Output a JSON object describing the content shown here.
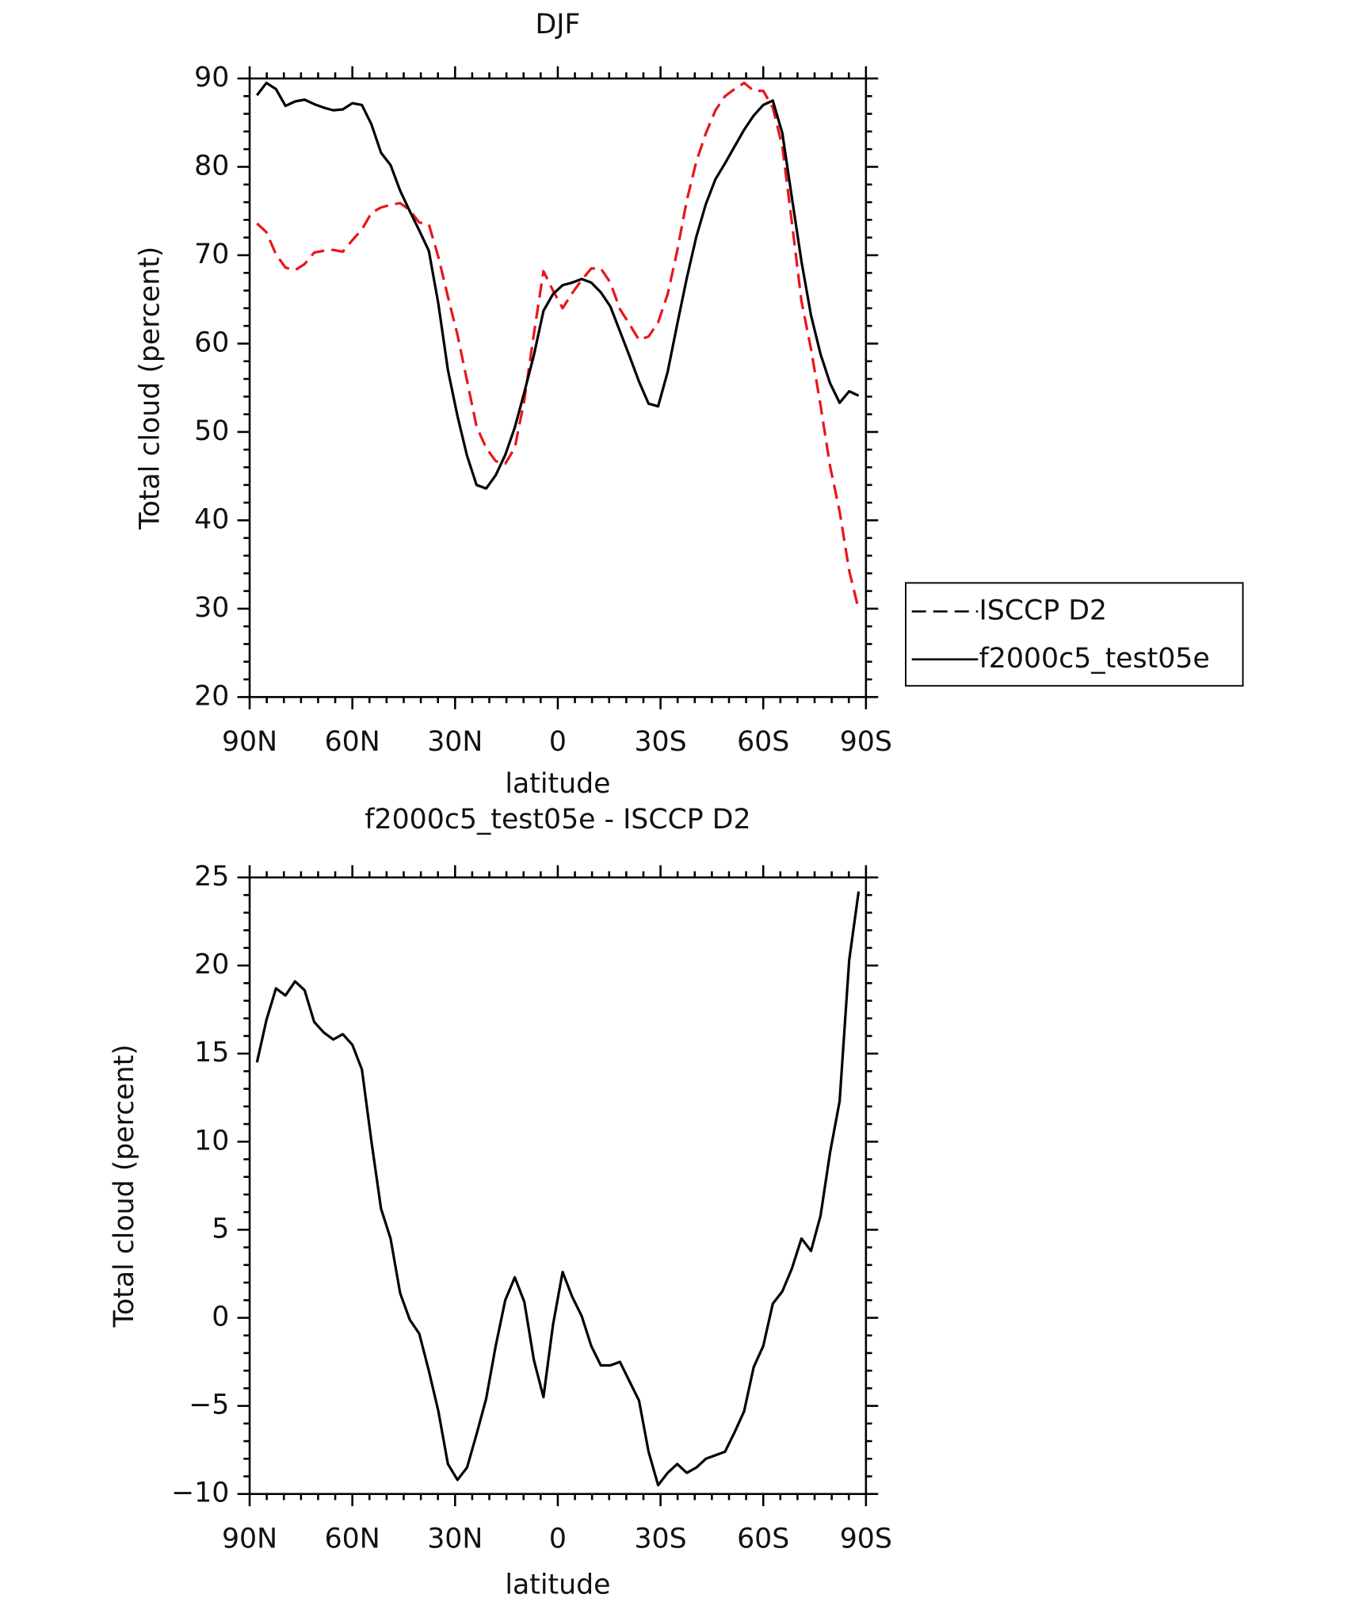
{
  "chart_data": [
    {
      "type": "line",
      "title": "DJF",
      "xlabel": "latitude",
      "ylabel": "Total cloud (percent)",
      "x": [
        87.86,
        85.1,
        82.31,
        79.53,
        76.74,
        73.95,
        71.16,
        68.37,
        65.58,
        62.79,
        60.0,
        57.21,
        54.42,
        51.63,
        48.84,
        46.04,
        43.25,
        40.46,
        37.67,
        34.88,
        32.09,
        29.3,
        26.51,
        23.72,
        20.93,
        18.14,
        15.35,
        12.56,
        9.77,
        6.98,
        4.19,
        1.4,
        -1.4,
        -4.19,
        -6.98,
        -9.77,
        -12.56,
        -15.35,
        -18.14,
        -20.93,
        -23.72,
        -26.51,
        -29.3,
        -32.09,
        -34.88,
        -37.67,
        -40.46,
        -43.25,
        -46.04,
        -48.84,
        -51.63,
        -54.42,
        -57.21,
        -60.0,
        -62.79,
        -65.58,
        -68.37,
        -71.16,
        -73.95,
        -76.74,
        -79.53,
        -82.31,
        -85.1,
        -87.86
      ],
      "xlim": [
        90,
        -90
      ],
      "xticks": [
        {
          "value": 90,
          "label": "90N"
        },
        {
          "value": 60,
          "label": "60N"
        },
        {
          "value": 30,
          "label": "30N"
        },
        0,
        {
          "value": -30,
          "label": "30S"
        },
        {
          "value": -60,
          "label": "60S"
        },
        {
          "value": -90,
          "label": "90S"
        }
      ],
      "ylim": [
        20,
        90
      ],
      "yticks": [
        20,
        30,
        40,
        50,
        60,
        70,
        80,
        90
      ],
      "legend": "right",
      "series": [
        {
          "name": "ISCCP D2",
          "color": "#e8161b",
          "dashed": true,
          "values": [
            73.6,
            72.6,
            70.1,
            68.6,
            68.3,
            69.0,
            70.3,
            70.5,
            70.6,
            70.4,
            71.7,
            72.9,
            74.8,
            75.4,
            75.7,
            75.9,
            75.1,
            73.7,
            73.5,
            69.8,
            65.3,
            61.0,
            55.8,
            50.6,
            48.2,
            46.7,
            46.4,
            48.2,
            53.6,
            61.1,
            68.2,
            66.0,
            64.0,
            65.7,
            67.2,
            68.5,
            68.5,
            66.9,
            63.9,
            62.2,
            60.4,
            60.8,
            62.4,
            65.6,
            70.5,
            76.2,
            80.6,
            83.8,
            86.4,
            88.0,
            88.8,
            89.5,
            88.6,
            88.6,
            86.7,
            82.3,
            73.7,
            64.8,
            59.4,
            53.0,
            46.1,
            41.0,
            34.3,
            29.9
          ]
        },
        {
          "name": "f2000c5_test05e",
          "color": "#000000",
          "dashed": false,
          "values": [
            88.1,
            89.5,
            88.8,
            86.9,
            87.4,
            87.6,
            87.1,
            86.7,
            86.4,
            86.5,
            87.2,
            87.0,
            84.8,
            81.6,
            80.2,
            77.3,
            75.0,
            72.8,
            70.5,
            64.5,
            57.0,
            51.8,
            47.3,
            44.0,
            43.6,
            45.1,
            47.4,
            50.5,
            54.5,
            58.7,
            63.7,
            65.6,
            66.6,
            66.9,
            67.3,
            66.9,
            65.8,
            64.2,
            61.4,
            58.6,
            55.7,
            53.2,
            52.9,
            56.8,
            62.2,
            67.4,
            72.1,
            75.8,
            78.6,
            80.4,
            82.3,
            84.2,
            85.8,
            87.0,
            87.5,
            83.8,
            76.5,
            69.3,
            63.2,
            58.8,
            55.5,
            53.3,
            54.6,
            54.1
          ]
        }
      ]
    },
    {
      "type": "line",
      "title": "f2000c5_test05e - ISCCP D2",
      "xlabel": "latitude",
      "ylabel": "Total cloud (percent)",
      "x": [
        87.86,
        85.1,
        82.31,
        79.53,
        76.74,
        73.95,
        71.16,
        68.37,
        65.58,
        62.79,
        60.0,
        57.21,
        54.42,
        51.63,
        48.84,
        46.04,
        43.25,
        40.46,
        37.67,
        34.88,
        32.09,
        29.3,
        26.51,
        23.72,
        20.93,
        18.14,
        15.35,
        12.56,
        9.77,
        6.98,
        4.19,
        1.4,
        -1.4,
        -4.19,
        -6.98,
        -9.77,
        -12.56,
        -15.35,
        -18.14,
        -20.93,
        -23.72,
        -26.51,
        -29.3,
        -32.09,
        -34.88,
        -37.67,
        -40.46,
        -43.25,
        -46.04,
        -48.84,
        -51.63,
        -54.42,
        -57.21,
        -60.0,
        -62.79,
        -65.58,
        -68.37,
        -71.16,
        -73.95,
        -76.74,
        -79.53,
        -82.31,
        -85.1,
        -87.86
      ],
      "xlim": [
        90,
        -90
      ],
      "xticks": [
        {
          "value": 90,
          "label": "90N"
        },
        {
          "value": 60,
          "label": "60N"
        },
        {
          "value": 30,
          "label": "30N"
        },
        0,
        {
          "value": -30,
          "label": "30S"
        },
        {
          "value": -60,
          "label": "60S"
        },
        {
          "value": -90,
          "label": "90S"
        }
      ],
      "ylim": [
        -10,
        25
      ],
      "yticks": [
        {
          "value": -10,
          "label": "−10"
        },
        {
          "value": -5,
          "label": "−5"
        },
        0,
        5,
        10,
        15,
        20,
        25
      ],
      "series": [
        {
          "color": "#000000",
          "dashed": false,
          "values": [
            14.5,
            16.9,
            18.7,
            18.3,
            19.1,
            18.6,
            16.8,
            16.2,
            15.8,
            16.1,
            15.5,
            14.1,
            10.0,
            6.2,
            4.5,
            1.4,
            -0.1,
            -0.9,
            -3.0,
            -5.3,
            -8.3,
            -9.2,
            -8.5,
            -6.6,
            -4.6,
            -1.6,
            1.0,
            2.3,
            0.9,
            -2.4,
            -4.5,
            -0.4,
            2.6,
            1.2,
            0.1,
            -1.6,
            -2.7,
            -2.7,
            -2.5,
            -3.6,
            -4.7,
            -7.6,
            -9.5,
            -8.8,
            -8.3,
            -8.8,
            -8.5,
            -8.0,
            -7.8,
            -7.6,
            -6.5,
            -5.3,
            -2.8,
            -1.6,
            0.8,
            1.5,
            2.8,
            4.5,
            3.8,
            5.8,
            9.4,
            12.3,
            20.3,
            24.2
          ]
        }
      ]
    }
  ]
}
